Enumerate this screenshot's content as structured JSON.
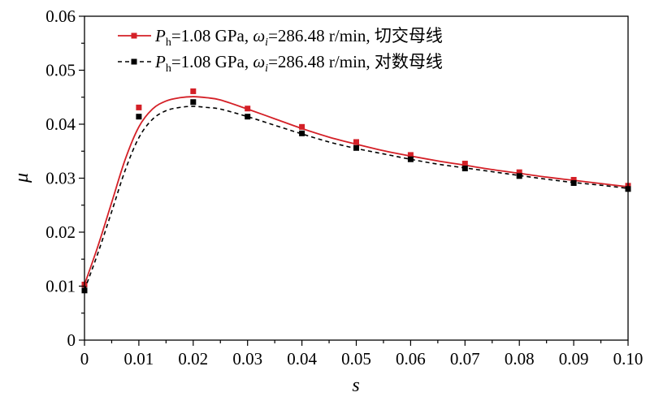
{
  "chart_data": {
    "type": "line",
    "xlabel": "s",
    "ylabel": "μ",
    "xlim": [
      0,
      0.1
    ],
    "ylim": [
      0,
      0.06
    ],
    "xticks": [
      "0",
      "0.01",
      "0.02",
      "0.03",
      "0.04",
      "0.05",
      "0.06",
      "0.07",
      "0.08",
      "0.09",
      "0.10"
    ],
    "yticks": [
      "0",
      "0.01",
      "0.02",
      "0.03",
      "0.04",
      "0.05",
      "0.06"
    ],
    "grid": false,
    "legend_position": "top-left",
    "series": [
      {
        "legend": {
          "p": "P",
          "sub_h": "h",
          "mid": "=1.08 GPa, ",
          "omega": "ω",
          "sub_i": "i",
          "tail": "=286.48 r/min, 切交母线"
        },
        "color": "#d42027",
        "dash": "solid",
        "curve_x": [
          0,
          0.0025,
          0.005,
          0.0075,
          0.01,
          0.0125,
          0.015,
          0.0175,
          0.02,
          0.0225,
          0.025,
          0.03,
          0.035,
          0.04,
          0.045,
          0.05,
          0.055,
          0.06,
          0.065,
          0.07,
          0.075,
          0.08,
          0.085,
          0.09,
          0.095,
          0.1
        ],
        "curve_y": [
          0.0103,
          0.0175,
          0.0255,
          0.0335,
          0.0395,
          0.0428,
          0.0443,
          0.0449,
          0.0451,
          0.0449,
          0.0445,
          0.0428,
          0.041,
          0.0392,
          0.0376,
          0.0363,
          0.0351,
          0.0341,
          0.0332,
          0.0324,
          0.0316,
          0.0309,
          0.0302,
          0.0296,
          0.029,
          0.0284
        ],
        "points_x": [
          0,
          0.01,
          0.02,
          0.03,
          0.04,
          0.05,
          0.06,
          0.07,
          0.08,
          0.09,
          0.1
        ],
        "points_y": [
          0.0103,
          0.0431,
          0.0461,
          0.0429,
          0.0395,
          0.0367,
          0.0343,
          0.0327,
          0.0311,
          0.0297,
          0.0286
        ]
      },
      {
        "legend": {
          "p": "P",
          "sub_h": "h",
          "mid": "=1.08 GPa, ",
          "omega": "ω",
          "sub_i": "i",
          "tail": "=286.48 r/min, 对数母线"
        },
        "color": "#000000",
        "dash": "dashed",
        "curve_x": [
          0,
          0.0025,
          0.005,
          0.0075,
          0.01,
          0.0125,
          0.015,
          0.0175,
          0.02,
          0.0225,
          0.025,
          0.03,
          0.035,
          0.04,
          0.045,
          0.05,
          0.055,
          0.06,
          0.065,
          0.07,
          0.075,
          0.08,
          0.085,
          0.09,
          0.095,
          0.1
        ],
        "curve_y": [
          0.0093,
          0.0162,
          0.0238,
          0.0315,
          0.0375,
          0.0409,
          0.0425,
          0.0431,
          0.0433,
          0.0431,
          0.0428,
          0.0414,
          0.0398,
          0.0382,
          0.0367,
          0.0355,
          0.0345,
          0.0335,
          0.0326,
          0.0319,
          0.0312,
          0.0305,
          0.0298,
          0.0292,
          0.0287,
          0.0281
        ],
        "points_x": [
          0,
          0.01,
          0.02,
          0.03,
          0.04,
          0.05,
          0.06,
          0.07,
          0.08,
          0.09,
          0.1
        ],
        "points_y": [
          0.0092,
          0.0414,
          0.0441,
          0.0414,
          0.0383,
          0.0356,
          0.0335,
          0.0318,
          0.0304,
          0.0291,
          0.028
        ]
      }
    ]
  }
}
